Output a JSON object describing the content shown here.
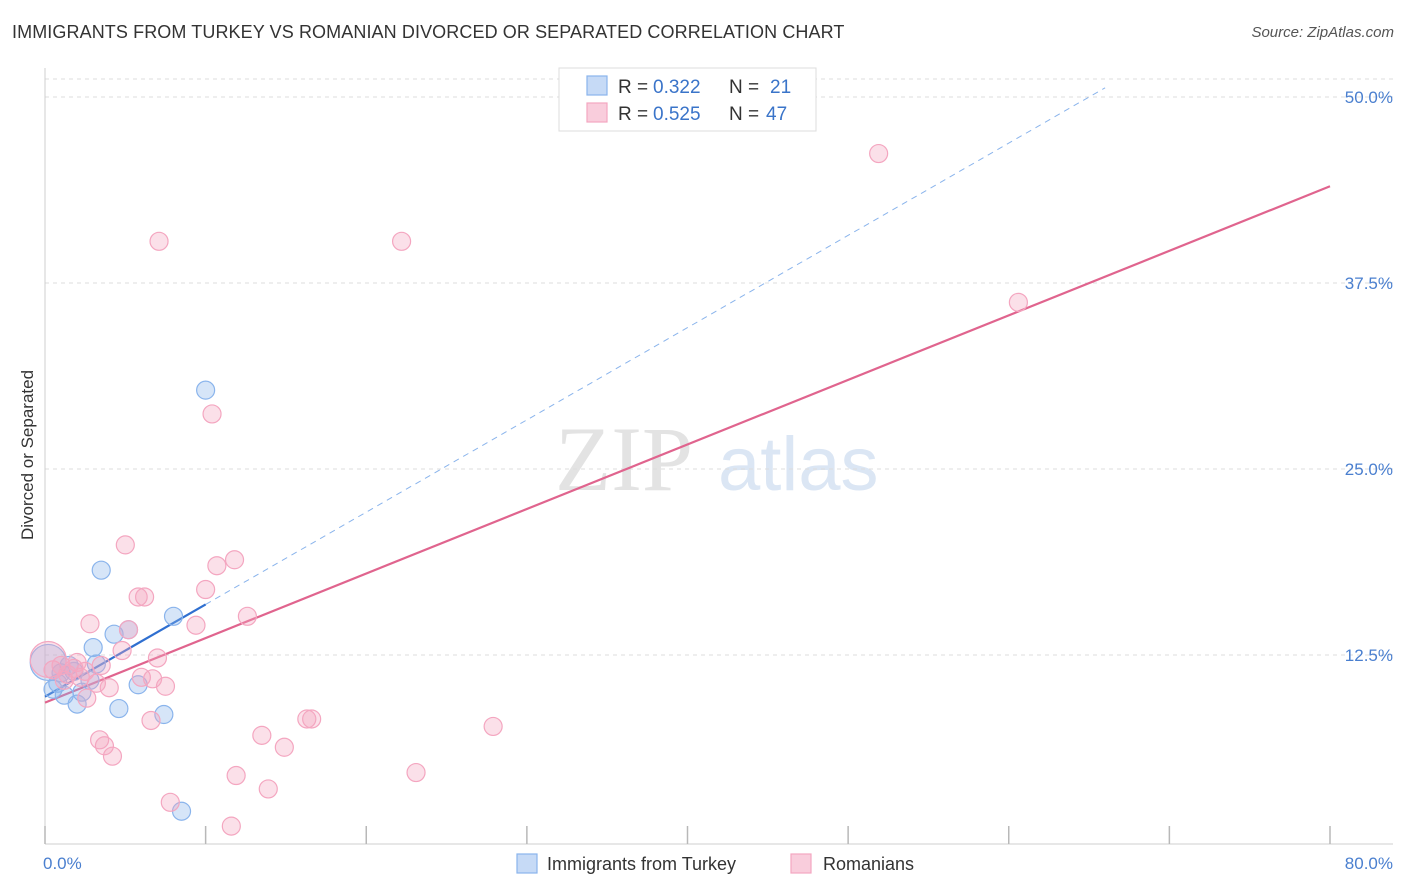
{
  "title": "IMMIGRANTS FROM TURKEY VS ROMANIAN DIVORCED OR SEPARATED CORRELATION CHART",
  "source": "Source: ZipAtlas.com",
  "watermark": {
    "zip": "ZIP",
    "atlas": "atlas"
  },
  "legend": {
    "rows": [
      {
        "r_label": "R =",
        "r_value": "0.322",
        "n_label": "N =",
        "n_value": "21"
      },
      {
        "r_label": "R =",
        "r_value": "0.525",
        "n_label": "N =",
        "n_value": "47"
      }
    ]
  },
  "chart_data": {
    "type": "scatter",
    "title": "IMMIGRANTS FROM TURKEY VS ROMANIAN DIVORCED OR SEPARATED CORRELATION CHART",
    "xlabel": "",
    "ylabel": "Divorced or Separated",
    "xlim": [
      0,
      80
    ],
    "ylim": [
      0,
      52
    ],
    "x_tick_labels": [
      "0.0%",
      "80.0%"
    ],
    "y_ticks": [
      12.5,
      25.0,
      37.5,
      50.0
    ],
    "y_tick_labels": [
      "12.5%",
      "25.0%",
      "37.5%",
      "50.0%"
    ],
    "grid": true,
    "legend_position": "top-center",
    "series": [
      {
        "name": "Immigrants from Turkey",
        "color": "#8ab4ec",
        "line_color": "#2f6fd0",
        "R": 0.322,
        "N": 21,
        "trend": {
          "x0": 0,
          "y0": 9.7,
          "x1": 10,
          "y1": 15.9,
          "dashed_extension_to_x": 66
        },
        "points": [
          [
            0.2,
            12.0,
            18
          ],
          [
            0.5,
            10.2,
            9
          ],
          [
            0.8,
            10.6,
            9
          ],
          [
            1.2,
            9.8,
            9
          ],
          [
            1.5,
            11.8,
            9
          ],
          [
            1.8,
            11.4,
            9
          ],
          [
            2.0,
            9.2,
            9
          ],
          [
            2.3,
            10.0,
            9
          ],
          [
            2.8,
            10.8,
            9
          ],
          [
            3.2,
            11.9,
            9
          ],
          [
            3.5,
            18.2,
            9
          ],
          [
            4.3,
            13.9,
            9
          ],
          [
            5.2,
            14.2,
            9
          ],
          [
            5.8,
            10.5,
            9
          ],
          [
            4.6,
            8.9,
            9
          ],
          [
            3.0,
            13.0,
            9
          ],
          [
            7.4,
            8.5,
            9
          ],
          [
            8.0,
            15.1,
            9
          ],
          [
            8.5,
            2.0,
            9
          ],
          [
            10.0,
            30.3,
            9
          ],
          [
            1.0,
            11.3,
            9
          ]
        ]
      },
      {
        "name": "Romanians",
        "color": "#f4a6c0",
        "line_color": "#e0648e",
        "R": 0.525,
        "N": 47,
        "trend": {
          "x0": 0,
          "y0": 9.3,
          "x1": 80,
          "y1": 44.0
        },
        "points": [
          [
            0.2,
            12.2,
            18
          ],
          [
            0.5,
            11.5,
            9
          ],
          [
            1.0,
            11.8,
            9
          ],
          [
            1.4,
            11.2,
            9
          ],
          [
            1.8,
            11.6,
            9
          ],
          [
            2.2,
            11.0,
            9
          ],
          [
            2.6,
            9.6,
            9
          ],
          [
            2.8,
            14.6,
            9
          ],
          [
            3.2,
            10.6,
            9
          ],
          [
            3.5,
            11.8,
            9
          ],
          [
            4.0,
            10.3,
            9
          ],
          [
            3.4,
            6.8,
            9
          ],
          [
            3.7,
            6.4,
            9
          ],
          [
            4.2,
            5.7,
            9
          ],
          [
            4.8,
            12.8,
            9
          ],
          [
            5.0,
            19.9,
            9
          ],
          [
            5.2,
            14.2,
            9
          ],
          [
            5.8,
            16.4,
            9
          ],
          [
            6.2,
            16.4,
            9
          ],
          [
            6.0,
            11.0,
            9
          ],
          [
            6.7,
            10.9,
            9
          ],
          [
            6.6,
            8.1,
            9
          ],
          [
            7.0,
            12.3,
            9
          ],
          [
            7.5,
            10.4,
            9
          ],
          [
            7.1,
            40.3,
            9
          ],
          [
            7.8,
            2.6,
            9
          ],
          [
            9.4,
            14.5,
            9
          ],
          [
            10.0,
            16.9,
            9
          ],
          [
            10.4,
            28.7,
            9
          ],
          [
            10.7,
            18.5,
            9
          ],
          [
            11.6,
            1.0,
            9
          ],
          [
            11.9,
            4.4,
            9
          ],
          [
            11.8,
            18.9,
            9
          ],
          [
            12.6,
            15.1,
            9
          ],
          [
            13.5,
            7.1,
            9
          ],
          [
            13.9,
            3.5,
            9
          ],
          [
            14.9,
            6.3,
            9
          ],
          [
            16.3,
            8.2,
            9
          ],
          [
            16.6,
            8.2,
            9
          ],
          [
            22.2,
            40.3,
            9
          ],
          [
            23.1,
            4.6,
            9
          ],
          [
            27.9,
            7.7,
            9
          ],
          [
            51.9,
            46.2,
            9
          ],
          [
            60.6,
            36.2,
            9
          ],
          [
            2.0,
            12.0,
            9
          ],
          [
            1.2,
            10.8,
            9
          ],
          [
            2.5,
            11.4,
            9
          ]
        ]
      }
    ]
  }
}
